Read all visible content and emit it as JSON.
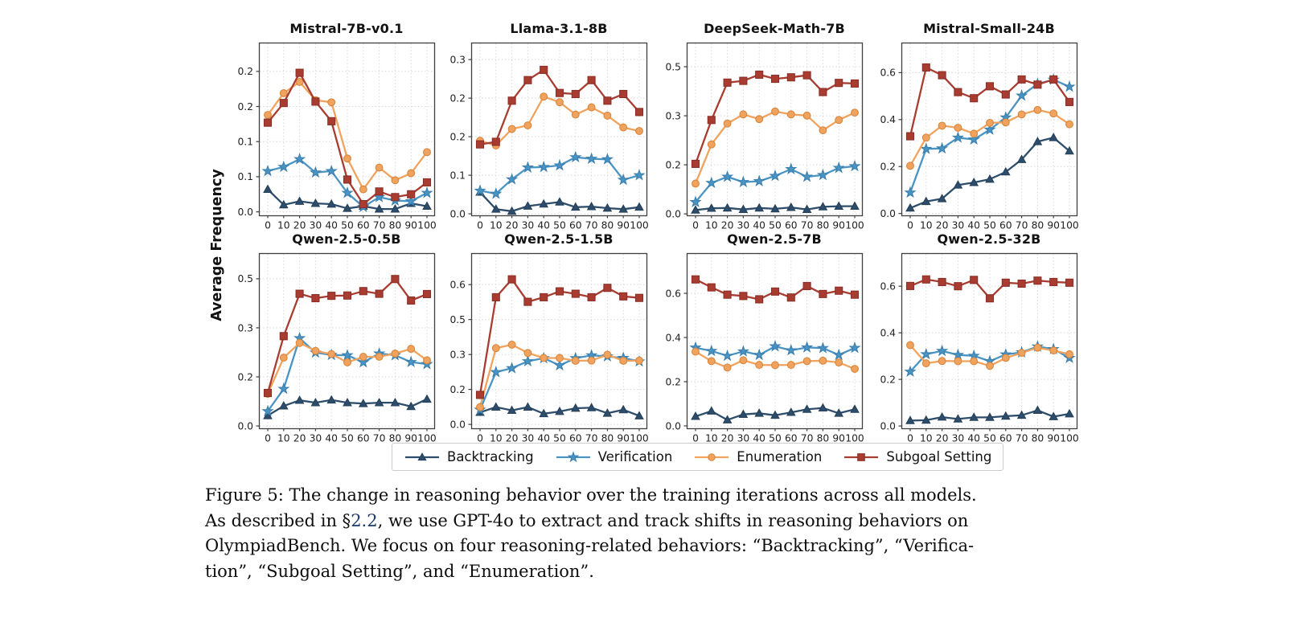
{
  "chart_data": {
    "type": "line",
    "ylabel": "Average Frequency",
    "x": [
      0,
      10,
      20,
      30,
      40,
      50,
      60,
      70,
      80,
      90,
      100
    ],
    "xtick_labels": [
      "0",
      "10",
      "20",
      "30",
      "40",
      "50",
      "60",
      "70",
      "80",
      "90",
      "100"
    ],
    "grid": true,
    "legend_position": "bottom",
    "subplots": [
      {
        "title": "Mistral-7B-v0.1",
        "ylim": [
          -0.005,
          0.241
        ],
        "yticks": [
          {
            "v": 0,
            "label": "0.0"
          },
          {
            "v": 0.05,
            "label": "0.1"
          },
          {
            "v": 0.1,
            "label": "0.1"
          },
          {
            "v": 0.15,
            "label": "0.2"
          },
          {
            "v": 0.2,
            "label": "0.2"
          }
        ],
        "series": [
          {
            "name": "Backtracking",
            "values": [
              0.032,
              0.01,
              0.015,
              0.012,
              0.011,
              0.005,
              0.008,
              0.004,
              0.004,
              0.012,
              0.008
            ]
          },
          {
            "name": "Verification",
            "values": [
              0.058,
              0.064,
              0.075,
              0.056,
              0.058,
              0.027,
              0.007,
              0.021,
              0.016,
              0.015,
              0.027
            ]
          },
          {
            "name": "Enumeration",
            "values": [
              0.138,
              0.169,
              0.185,
              0.159,
              0.156,
              0.076,
              0.032,
              0.063,
              0.045,
              0.055,
              0.085
            ]
          },
          {
            "name": "Subgoal Setting",
            "values": [
              0.127,
              0.155,
              0.198,
              0.157,
              0.129,
              0.046,
              0.011,
              0.029,
              0.021,
              0.025,
              0.042
            ]
          }
        ]
      },
      {
        "title": "Llama-3.1-8B",
        "ylim": [
          -0.003,
          0.333
        ],
        "yticks": [
          {
            "v": 0,
            "label": "0.0"
          },
          {
            "v": 0.075,
            "label": "0.1"
          },
          {
            "v": 0.15,
            "label": "0.2"
          },
          {
            "v": 0.225,
            "label": "0.2"
          },
          {
            "v": 0.3,
            "label": "0.3"
          }
        ],
        "series": [
          {
            "name": "Backtracking",
            "values": [
              0.042,
              0.009,
              0.005,
              0.015,
              0.019,
              0.023,
              0.013,
              0.014,
              0.011,
              0.009,
              0.013
            ]
          },
          {
            "name": "Verification",
            "values": [
              0.045,
              0.039,
              0.067,
              0.09,
              0.091,
              0.094,
              0.11,
              0.107,
              0.106,
              0.066,
              0.075
            ]
          },
          {
            "name": "Enumeration",
            "values": [
              0.142,
              0.133,
              0.165,
              0.172,
              0.228,
              0.217,
              0.193,
              0.207,
              0.191,
              0.168,
              0.161
            ]
          },
          {
            "name": "Subgoal Setting",
            "values": [
              0.135,
              0.14,
              0.22,
              0.26,
              0.28,
              0.235,
              0.233,
              0.26,
              0.22,
              0.233,
              0.198
            ]
          }
        ]
      },
      {
        "title": "DeepSeek-Math-7B",
        "ylim": [
          -0.005,
          0.582
        ],
        "yticks": [
          {
            "v": 0,
            "label": "0.0"
          },
          {
            "v": 0.1667,
            "label": "0.2"
          },
          {
            "v": 0.3333,
            "label": "0.3"
          },
          {
            "v": 0.5,
            "label": "0.5"
          }
        ],
        "series": [
          {
            "name": "Backtracking",
            "values": [
              0.013,
              0.019,
              0.02,
              0.015,
              0.02,
              0.017,
              0.022,
              0.015,
              0.024,
              0.026,
              0.026
            ]
          },
          {
            "name": "Verification",
            "values": [
              0.04,
              0.105,
              0.126,
              0.108,
              0.111,
              0.129,
              0.152,
              0.126,
              0.132,
              0.156,
              0.162
            ]
          },
          {
            "name": "Enumeration",
            "values": [
              0.103,
              0.236,
              0.307,
              0.338,
              0.322,
              0.348,
              0.338,
              0.334,
              0.284,
              0.319,
              0.344
            ]
          },
          {
            "name": "Subgoal Setting",
            "values": [
              0.17,
              0.319,
              0.446,
              0.452,
              0.473,
              0.459,
              0.464,
              0.471,
              0.414,
              0.445,
              0.443
            ]
          }
        ]
      },
      {
        "title": "Mistral-Small-24B",
        "ylim": [
          -0.008,
          0.728
        ],
        "yticks": [
          {
            "v": 0,
            "label": "0.0"
          },
          {
            "v": 0.2,
            "label": "0.2"
          },
          {
            "v": 0.4,
            "label": "0.4"
          },
          {
            "v": 0.6,
            "label": "0.6"
          }
        ],
        "series": [
          {
            "name": "Backtracking",
            "values": [
              0.023,
              0.051,
              0.063,
              0.121,
              0.132,
              0.146,
              0.177,
              0.23,
              0.306,
              0.323,
              0.266
            ]
          },
          {
            "name": "Verification",
            "values": [
              0.089,
              0.275,
              0.277,
              0.323,
              0.315,
              0.357,
              0.409,
              0.502,
              0.552,
              0.57,
              0.54
            ]
          },
          {
            "name": "Enumeration",
            "values": [
              0.203,
              0.323,
              0.374,
              0.365,
              0.34,
              0.386,
              0.388,
              0.422,
              0.441,
              0.426,
              0.38
            ]
          },
          {
            "name": "Subgoal Setting",
            "values": [
              0.329,
              0.622,
              0.589,
              0.517,
              0.491,
              0.542,
              0.507,
              0.571,
              0.549,
              0.571,
              0.475
            ]
          }
        ]
      },
      {
        "title": "Qwen-2.5-0.5B",
        "ylim": [
          -0.008,
          0.587
        ],
        "yticks": [
          {
            "v": 0,
            "label": "0.0"
          },
          {
            "v": 0.1667,
            "label": "0.2"
          },
          {
            "v": 0.3333,
            "label": "0.3"
          },
          {
            "v": 0.5,
            "label": "0.5"
          }
        ],
        "series": [
          {
            "name": "Backtracking",
            "values": [
              0.035,
              0.068,
              0.087,
              0.079,
              0.088,
              0.079,
              0.076,
              0.079,
              0.079,
              0.066,
              0.091
            ]
          },
          {
            "name": "Verification",
            "values": [
              0.05,
              0.126,
              0.298,
              0.249,
              0.241,
              0.24,
              0.216,
              0.246,
              0.24,
              0.217,
              0.21
            ]
          },
          {
            "name": "Enumeration",
            "values": [
              0.109,
              0.232,
              0.282,
              0.255,
              0.244,
              0.216,
              0.235,
              0.235,
              0.246,
              0.262,
              0.223
            ]
          },
          {
            "name": "Subgoal Setting",
            "values": [
              0.112,
              0.305,
              0.449,
              0.434,
              0.442,
              0.443,
              0.458,
              0.449,
              0.499,
              0.426,
              0.448
            ]
          }
        ]
      },
      {
        "title": "Qwen-2.5-1.5B",
        "ylim": [
          -0.018,
          0.784
        ],
        "yticks": [
          {
            "v": 0,
            "label": "0.0"
          },
          {
            "v": 0.16,
            "label": "0.2"
          },
          {
            "v": 0.32,
            "label": "0.3"
          },
          {
            "v": 0.48,
            "label": "0.5"
          },
          {
            "v": 0.64,
            "label": "0.6"
          }
        ],
        "series": [
          {
            "name": "Backtracking",
            "values": [
              0.055,
              0.079,
              0.064,
              0.079,
              0.049,
              0.059,
              0.074,
              0.076,
              0.051,
              0.067,
              0.039
            ]
          },
          {
            "name": "Verification",
            "values": [
              0.067,
              0.239,
              0.257,
              0.289,
              0.303,
              0.27,
              0.303,
              0.316,
              0.311,
              0.304,
              0.288
            ]
          },
          {
            "name": "Enumeration",
            "values": [
              0.079,
              0.349,
              0.365,
              0.327,
              0.304,
              0.304,
              0.291,
              0.292,
              0.319,
              0.291,
              0.292
            ]
          },
          {
            "name": "Subgoal Setting",
            "values": [
              0.135,
              0.582,
              0.664,
              0.561,
              0.582,
              0.609,
              0.598,
              0.582,
              0.625,
              0.586,
              0.579
            ]
          }
        ]
      },
      {
        "title": "Qwen-2.5-7B",
        "ylim": [
          -0.011,
          0.782
        ],
        "yticks": [
          {
            "v": 0,
            "label": "0.0"
          },
          {
            "v": 0.2,
            "label": "0.2"
          },
          {
            "v": 0.4,
            "label": "0.4"
          },
          {
            "v": 0.6,
            "label": "0.6"
          }
        ],
        "series": [
          {
            "name": "Backtracking",
            "values": [
              0.043,
              0.067,
              0.027,
              0.052,
              0.057,
              0.048,
              0.061,
              0.075,
              0.081,
              0.057,
              0.075
            ]
          },
          {
            "name": "Verification",
            "values": [
              0.354,
              0.339,
              0.317,
              0.337,
              0.321,
              0.36,
              0.342,
              0.355,
              0.352,
              0.321,
              0.353
            ]
          },
          {
            "name": "Enumeration",
            "values": [
              0.336,
              0.293,
              0.264,
              0.297,
              0.276,
              0.275,
              0.276,
              0.293,
              0.295,
              0.287,
              0.258
            ]
          },
          {
            "name": "Subgoal Setting",
            "values": [
              0.663,
              0.627,
              0.594,
              0.588,
              0.573,
              0.608,
              0.581,
              0.633,
              0.597,
              0.612,
              0.594
            ]
          }
        ]
      },
      {
        "title": "Qwen-2.5-32B",
        "ylim": [
          -0.01,
          0.742
        ],
        "yticks": [
          {
            "v": 0,
            "label": "0.0"
          },
          {
            "v": 0.2,
            "label": "0.2"
          },
          {
            "v": 0.4,
            "label": "0.4"
          },
          {
            "v": 0.6,
            "label": "0.6"
          }
        ],
        "series": [
          {
            "name": "Backtracking",
            "values": [
              0.023,
              0.025,
              0.038,
              0.03,
              0.037,
              0.037,
              0.042,
              0.046,
              0.067,
              0.04,
              0.052
            ]
          },
          {
            "name": "Verification",
            "values": [
              0.233,
              0.308,
              0.322,
              0.305,
              0.301,
              0.278,
              0.307,
              0.316,
              0.341,
              0.33,
              0.292
            ]
          },
          {
            "name": "Enumeration",
            "values": [
              0.347,
              0.269,
              0.279,
              0.278,
              0.278,
              0.258,
              0.292,
              0.314,
              0.336,
              0.324,
              0.308
            ]
          },
          {
            "name": "Subgoal Setting",
            "values": [
              0.601,
              0.629,
              0.618,
              0.6,
              0.627,
              0.548,
              0.615,
              0.611,
              0.624,
              0.618,
              0.615
            ]
          }
        ]
      }
    ]
  },
  "legend": {
    "items": [
      {
        "label": "Backtracking",
        "marker": "triangle",
        "color": "#2e4d6b",
        "edge": "#24405a"
      },
      {
        "label": "Verification",
        "marker": "star",
        "color": "#4a94c4",
        "edge": "#3a7fae"
      },
      {
        "label": "Enumeration",
        "marker": "circle",
        "color": "#f0a35e",
        "edge": "#d9863c"
      },
      {
        "label": "Subgoal Setting",
        "marker": "square",
        "color": "#a93c31",
        "edge": "#8c2f26"
      }
    ]
  },
  "colors": {
    "grid": "#d8d8d8",
    "spine": "#3f3f3f",
    "tick_label": "#222222"
  },
  "caption": {
    "line1": "Figure 5: The change in reasoning behavior over the training iterations across all models.",
    "line2_pre": "As described in §",
    "line2_link": "2.2",
    "line2_post": ", we use GPT-4o to extract and track shifts in reasoning behaviors on",
    "line3": "OlympiadBench. We focus on four reasoning-related behaviors: “Backtracking”, “Verifica-",
    "line4": "tion”, “Subgoal Setting”, and “Enumeration”.",
    "link_color": "#1b3a6b"
  }
}
